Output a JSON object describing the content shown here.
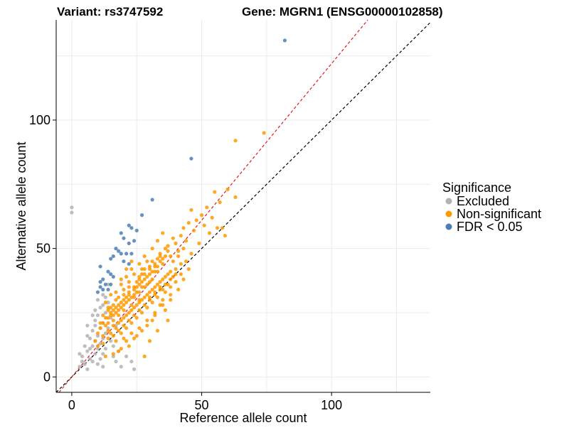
{
  "chart_data": {
    "type": "scatter",
    "title_left": "Variant: rs3747592",
    "title_right": "Gene: MGRN1 (ENSG00000102858)",
    "xlabel": "Reference allele count",
    "ylabel": "Alternative allele count",
    "xlim": [
      -6,
      138
    ],
    "ylim": [
      -6,
      139
    ],
    "x_ticks": [
      0,
      50,
      100
    ],
    "y_ticks": [
      0,
      50,
      100
    ],
    "x_tick_labels": [
      "0",
      "50",
      "100"
    ],
    "y_tick_labels": [
      "0",
      "50",
      "100"
    ],
    "grid": true,
    "reference_lines": [
      {
        "name": "identity",
        "slope": 1,
        "intercept": 0,
        "color": "#000000",
        "dash": "dashed"
      },
      {
        "name": "fit",
        "slope": 1.22,
        "intercept": 0,
        "color": "#e41a1c",
        "dash": "dashed"
      }
    ],
    "legend": {
      "title": "Significance",
      "position": "right",
      "entries": [
        {
          "label": "Excluded",
          "color": "#b3b3b3"
        },
        {
          "label": "Non-significant",
          "color": "#ff9900"
        },
        {
          "label": "FDR < 0.05",
          "color": "#4a7fb5"
        }
      ]
    },
    "series": [
      {
        "name": "Excluded",
        "color": "#b3b3b3",
        "points": [
          [
            0,
            66
          ],
          [
            0,
            64
          ],
          [
            3,
            4
          ],
          [
            4,
            8
          ],
          [
            5,
            5
          ],
          [
            5,
            12
          ],
          [
            6,
            10
          ],
          [
            6,
            3
          ],
          [
            7,
            15
          ],
          [
            7,
            7
          ],
          [
            8,
            18
          ],
          [
            8,
            12
          ],
          [
            8,
            6
          ],
          [
            9,
            20
          ],
          [
            9,
            14
          ],
          [
            9,
            9
          ],
          [
            9,
            22
          ],
          [
            10,
            24
          ],
          [
            10,
            16
          ],
          [
            10,
            11
          ],
          [
            10,
            5
          ],
          [
            11,
            19
          ],
          [
            11,
            13
          ],
          [
            11,
            27
          ],
          [
            12,
            21
          ],
          [
            12,
            15
          ],
          [
            12,
            9
          ],
          [
            12,
            32
          ],
          [
            13,
            17
          ],
          [
            13,
            25
          ],
          [
            13,
            11
          ],
          [
            14,
            29
          ],
          [
            14,
            19
          ],
          [
            15,
            14
          ],
          [
            15,
            23
          ],
          [
            16,
            12
          ],
          [
            16,
            8
          ],
          [
            17,
            20
          ],
          [
            17,
            6
          ],
          [
            18,
            10
          ],
          [
            19,
            4
          ],
          [
            21,
            8
          ],
          [
            23,
            6
          ],
          [
            24,
            3
          ],
          [
            11,
            7
          ],
          [
            7,
            11
          ],
          [
            6,
            16
          ],
          [
            9,
            26
          ],
          [
            8,
            24
          ],
          [
            10,
            30
          ],
          [
            12,
            28
          ],
          [
            14,
            36
          ],
          [
            13,
            31
          ],
          [
            4,
            6
          ],
          [
            3,
            9
          ],
          [
            6,
            20
          ],
          [
            12,
            4
          ]
        ]
      },
      {
        "name": "Non-significant",
        "color": "#ff9900",
        "points": [
          [
            74,
            95
          ],
          [
            63,
            92
          ],
          [
            60,
            73
          ],
          [
            55,
            72
          ],
          [
            63,
            70
          ],
          [
            57,
            68
          ],
          [
            52,
            66
          ],
          [
            46,
            65
          ],
          [
            50,
            63
          ],
          [
            54,
            62
          ],
          [
            48,
            61
          ],
          [
            45,
            60
          ],
          [
            58,
            58
          ],
          [
            56,
            58
          ],
          [
            51,
            59
          ],
          [
            43,
            58
          ],
          [
            47,
            57
          ],
          [
            59,
            55
          ],
          [
            53,
            56
          ],
          [
            42,
            55
          ],
          [
            39,
            54
          ],
          [
            44,
            53
          ],
          [
            49,
            52
          ],
          [
            40,
            52
          ],
          [
            37,
            51
          ],
          [
            36,
            50
          ],
          [
            41,
            49
          ],
          [
            34,
            48
          ],
          [
            38,
            47
          ],
          [
            33,
            46
          ],
          [
            31,
            45
          ],
          [
            35,
            44
          ],
          [
            30,
            43
          ],
          [
            28,
            42
          ],
          [
            45,
            42
          ],
          [
            32,
            41
          ],
          [
            27,
            40
          ],
          [
            26,
            39
          ],
          [
            43,
            38
          ],
          [
            40,
            37
          ],
          [
            29,
            36
          ],
          [
            24,
            35
          ],
          [
            41,
            34
          ],
          [
            22,
            33
          ],
          [
            38,
            32
          ],
          [
            21,
            31
          ],
          [
            35,
            30
          ],
          [
            19,
            29
          ],
          [
            34,
            28
          ],
          [
            17,
            27
          ],
          [
            36,
            26
          ],
          [
            15,
            25
          ],
          [
            32,
            24
          ],
          [
            14,
            23
          ],
          [
            31,
            22
          ],
          [
            12,
            21
          ],
          [
            29,
            20
          ],
          [
            11,
            19
          ],
          [
            27,
            18
          ],
          [
            10,
            17
          ],
          [
            25,
            16
          ],
          [
            24,
            15
          ],
          [
            9,
            14
          ],
          [
            21,
            14
          ],
          [
            22,
            12
          ],
          [
            19,
            11
          ],
          [
            18,
            10
          ],
          [
            16,
            9
          ],
          [
            13,
            8
          ],
          [
            28,
            8
          ],
          [
            30,
            14
          ],
          [
            33,
            18
          ],
          [
            37,
            22
          ],
          [
            26,
            30
          ],
          [
            23,
            28
          ],
          [
            20,
            26
          ],
          [
            18,
            24
          ],
          [
            16,
            22
          ],
          [
            25,
            33
          ],
          [
            27,
            35
          ],
          [
            30,
            37
          ],
          [
            17,
            30
          ],
          [
            14,
            27
          ],
          [
            20,
            34
          ],
          [
            22,
            37
          ],
          [
            24,
            40
          ],
          [
            26,
            44
          ],
          [
            28,
            47
          ],
          [
            19,
            38
          ],
          [
            15,
            32
          ],
          [
            13,
            29
          ],
          [
            21,
            42
          ],
          [
            23,
            45
          ],
          [
            31,
            50
          ],
          [
            33,
            53
          ],
          [
            35,
            56
          ],
          [
            18,
            21
          ],
          [
            20,
            23
          ],
          [
            22,
            25
          ],
          [
            24,
            27
          ],
          [
            26,
            29
          ],
          [
            28,
            31
          ],
          [
            30,
            33
          ],
          [
            32,
            35
          ],
          [
            34,
            37
          ],
          [
            36,
            39
          ],
          [
            38,
            41
          ],
          [
            12,
            16
          ],
          [
            14,
            18
          ],
          [
            16,
            20
          ],
          [
            19,
            17
          ],
          [
            21,
            19
          ],
          [
            23,
            21
          ],
          [
            25,
            23
          ],
          [
            27,
            25
          ],
          [
            29,
            27
          ],
          [
            31,
            29
          ],
          [
            33,
            31
          ],
          [
            17,
            14
          ],
          [
            20,
            15
          ],
          [
            23,
            17
          ],
          [
            26,
            19
          ],
          [
            29,
            22
          ],
          [
            32,
            25
          ],
          [
            35,
            28
          ],
          [
            38,
            30
          ],
          [
            16,
            26
          ],
          [
            18,
            28
          ],
          [
            20,
            30
          ],
          [
            22,
            32
          ],
          [
            24,
            34
          ],
          [
            26,
            36
          ],
          [
            28,
            38
          ],
          [
            30,
            40
          ],
          [
            32,
            43
          ],
          [
            34,
            45
          ],
          [
            36,
            47
          ],
          [
            13,
            20
          ],
          [
            15,
            24
          ],
          [
            17,
            33
          ],
          [
            19,
            36
          ],
          [
            21,
            39
          ],
          [
            23,
            42
          ],
          [
            25,
            37
          ],
          [
            27,
            42
          ],
          [
            29,
            45
          ],
          [
            31,
            38
          ],
          [
            33,
            41
          ],
          [
            35,
            34
          ],
          [
            37,
            36
          ],
          [
            39,
            39
          ],
          [
            42,
            40
          ],
          [
            44,
            45
          ],
          [
            46,
            48
          ],
          [
            39,
            45
          ],
          [
            41,
            47
          ],
          [
            43,
            50
          ],
          [
            11,
            21
          ],
          [
            12,
            24
          ],
          [
            14,
            26
          ],
          [
            16,
            28
          ],
          [
            18,
            31
          ],
          [
            20,
            32
          ],
          [
            22,
            35
          ],
          [
            24,
            31
          ],
          [
            26,
            33
          ],
          [
            28,
            35
          ],
          [
            30,
            31
          ],
          [
            32,
            33
          ],
          [
            34,
            35
          ],
          [
            36,
            33
          ],
          [
            38,
            35
          ],
          [
            40,
            42
          ],
          [
            42,
            44
          ],
          [
            15,
            17
          ],
          [
            17,
            19
          ],
          [
            19,
            22
          ],
          [
            21,
            24
          ],
          [
            23,
            26
          ],
          [
            25,
            28
          ],
          [
            27,
            30
          ],
          [
            29,
            32
          ],
          [
            31,
            34
          ],
          [
            33,
            36
          ],
          [
            35,
            38
          ],
          [
            37,
            40
          ],
          [
            10,
            12
          ],
          [
            12,
            13
          ],
          [
            14,
            15
          ],
          [
            16,
            16
          ],
          [
            18,
            18
          ],
          [
            20,
            20
          ],
          [
            22,
            22
          ],
          [
            24,
            24
          ],
          [
            26,
            26
          ],
          [
            28,
            28
          ],
          [
            30,
            30
          ],
          [
            32,
            32
          ],
          [
            34,
            34
          ],
          [
            36,
            36
          ],
          [
            38,
            38
          ],
          [
            40,
            40
          ],
          [
            13,
            23
          ],
          [
            15,
            27
          ],
          [
            17,
            25
          ],
          [
            19,
            27
          ],
          [
            21,
            29
          ],
          [
            23,
            31
          ],
          [
            25,
            35
          ],
          [
            27,
            37
          ],
          [
            29,
            39
          ],
          [
            31,
            41
          ],
          [
            33,
            43
          ],
          [
            35,
            46
          ],
          [
            37,
            49
          ],
          [
            14,
            21
          ],
          [
            16,
            24
          ],
          [
            18,
            26
          ],
          [
            20,
            28
          ],
          [
            22,
            30
          ],
          [
            24,
            32
          ],
          [
            26,
            38
          ],
          [
            28,
            40
          ],
          [
            30,
            42
          ],
          [
            32,
            44
          ],
          [
            34,
            47
          ]
        ]
      },
      {
        "name": "FDR < 0.05",
        "color": "#4a7fb5",
        "points": [
          [
            82,
            131
          ],
          [
            46,
            85
          ],
          [
            31,
            69
          ],
          [
            27,
            63
          ],
          [
            22,
            59
          ],
          [
            23,
            58
          ],
          [
            25,
            57
          ],
          [
            19,
            56
          ],
          [
            20,
            54
          ],
          [
            24,
            53
          ],
          [
            22,
            52
          ],
          [
            17,
            50
          ],
          [
            18,
            49
          ],
          [
            19,
            48
          ],
          [
            21,
            48
          ],
          [
            23,
            48
          ],
          [
            16,
            47
          ],
          [
            15,
            46
          ],
          [
            20,
            45
          ],
          [
            22,
            44
          ],
          [
            11,
            43
          ],
          [
            14,
            41
          ],
          [
            15,
            40
          ],
          [
            16,
            39
          ],
          [
            12,
            38
          ],
          [
            11,
            37
          ],
          [
            13,
            36
          ],
          [
            15,
            36
          ],
          [
            11,
            35
          ],
          [
            12,
            34
          ],
          [
            10,
            33
          ],
          [
            14,
            34
          ]
        ]
      }
    ]
  }
}
